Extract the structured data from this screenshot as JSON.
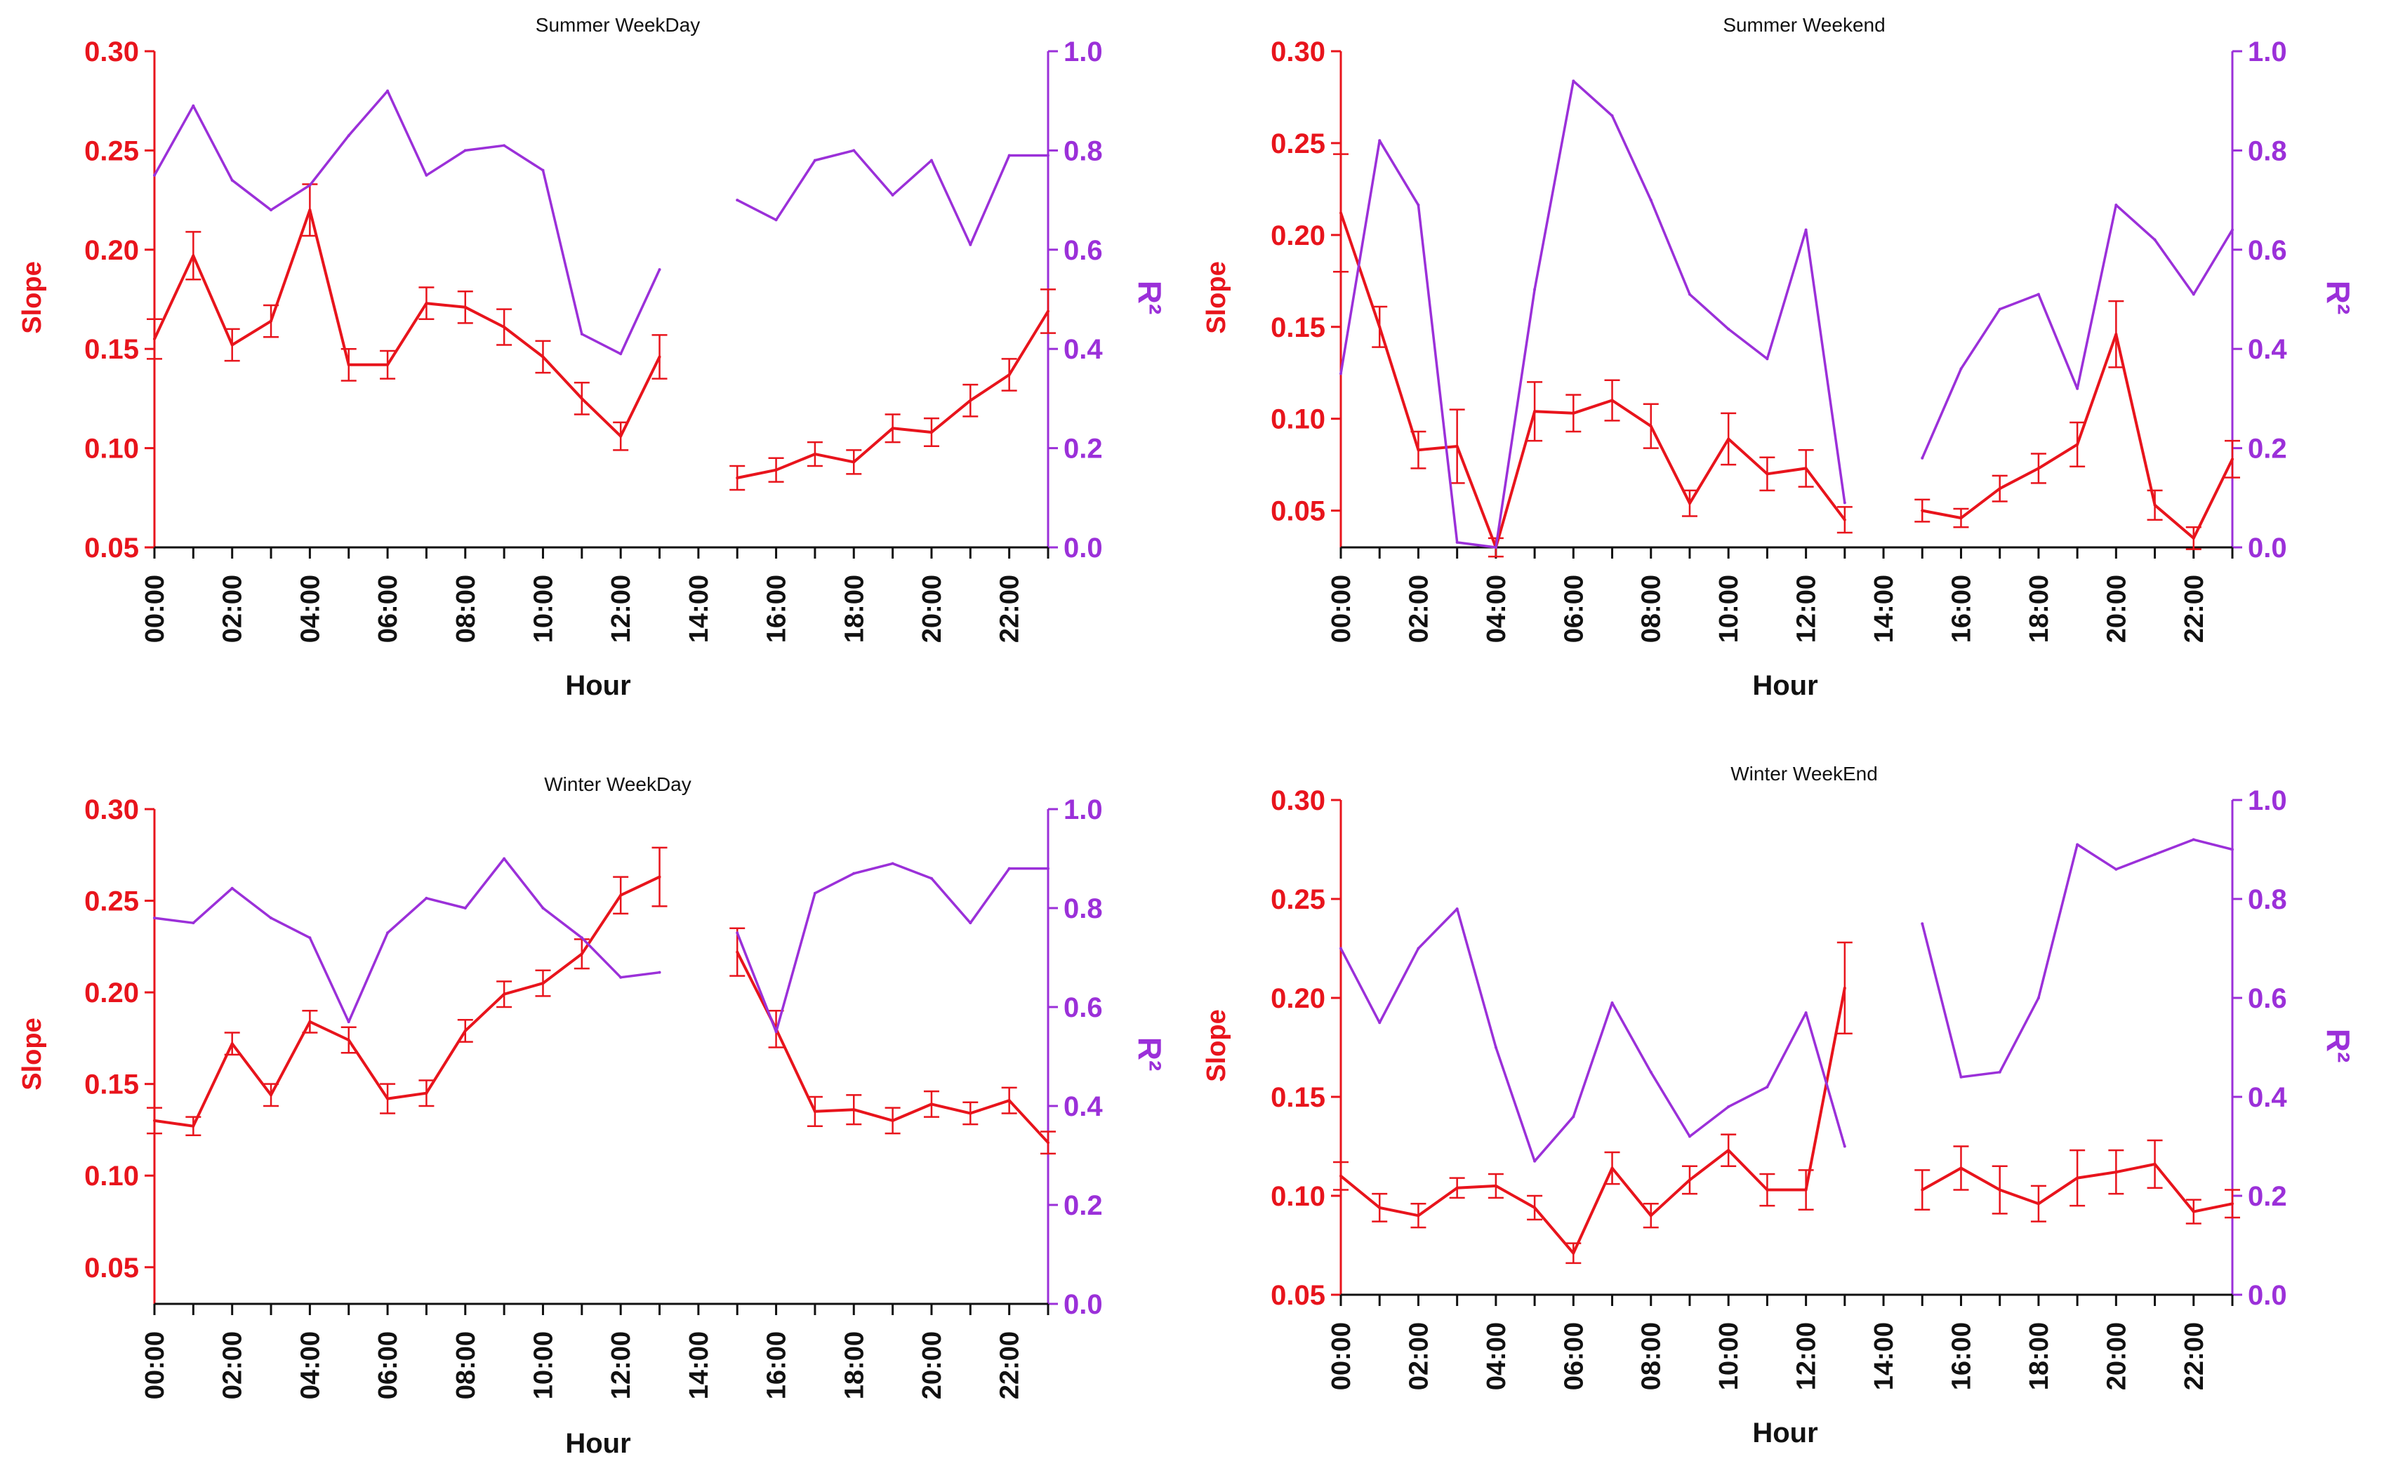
{
  "colors": {
    "slope": "#e8141c",
    "r2": "#9b30d9",
    "axis": "#111111"
  },
  "chart_data": [
    {
      "type": "line",
      "title": "Summer WeekDay",
      "xlabel": "Hour",
      "ylabel_left": "Slope",
      "ylabel_right": "R²",
      "ylim_left": [
        0.05,
        0.3
      ],
      "ylim_right": [
        0.0,
        1.0
      ],
      "yticks_left": [
        "0.05",
        "0.10",
        "0.15",
        "0.20",
        "0.25",
        "0.30"
      ],
      "yticks_right": [
        "0.0",
        "0.2",
        "0.4",
        "0.6",
        "0.8",
        "1.0"
      ],
      "x_ticks": [
        "00:00",
        "02:00",
        "04:00",
        "06:00",
        "08:00",
        "10:00",
        "12:00",
        "14:00",
        "16:00",
        "18:00",
        "20:00",
        "22:00"
      ],
      "hours": [
        0,
        1,
        2,
        3,
        4,
        5,
        6,
        7,
        8,
        9,
        10,
        11,
        12,
        13,
        14,
        15,
        16,
        17,
        18,
        19,
        20,
        21,
        22,
        23
      ],
      "series": [
        {
          "name": "Slope",
          "axis": "left",
          "values": [
            0.155,
            0.197,
            0.152,
            0.164,
            0.22,
            0.142,
            0.142,
            0.173,
            0.171,
            0.161,
            0.146,
            0.125,
            0.106,
            0.146,
            null,
            0.085,
            0.089,
            0.097,
            0.093,
            0.11,
            0.108,
            0.124,
            0.137,
            0.169
          ],
          "errors": [
            0.01,
            0.012,
            0.008,
            0.008,
            0.013,
            0.008,
            0.007,
            0.008,
            0.008,
            0.009,
            0.008,
            0.008,
            0.007,
            0.011,
            null,
            0.006,
            0.006,
            0.006,
            0.006,
            0.007,
            0.007,
            0.008,
            0.008,
            0.011
          ]
        },
        {
          "name": "R²",
          "axis": "right",
          "values": [
            0.75,
            0.89,
            0.74,
            0.68,
            0.73,
            0.83,
            0.92,
            0.75,
            0.8,
            0.81,
            0.76,
            0.43,
            0.39,
            0.56,
            null,
            0.7,
            0.66,
            0.78,
            0.8,
            0.71,
            0.78,
            0.61,
            0.79,
            0.79
          ]
        }
      ]
    },
    {
      "type": "line",
      "title": "Summer Weekend",
      "xlabel": "Hour",
      "ylabel_left": "Slope",
      "ylabel_right": "R²",
      "ylim_left": [
        0.03,
        0.3
      ],
      "ylim_right": [
        0.0,
        1.0
      ],
      "yticks_left": [
        "0.05",
        "0.10",
        "0.15",
        "0.20",
        "0.25",
        "0.30"
      ],
      "yticks_right": [
        "0.0",
        "0.2",
        "0.4",
        "0.6",
        "0.8",
        "1.0"
      ],
      "x_ticks": [
        "00:00",
        "02:00",
        "04:00",
        "06:00",
        "08:00",
        "10:00",
        "12:00",
        "14:00",
        "16:00",
        "18:00",
        "20:00",
        "22:00"
      ],
      "hours": [
        0,
        1,
        2,
        3,
        4,
        5,
        6,
        7,
        8,
        9,
        10,
        11,
        12,
        13,
        14,
        15,
        16,
        17,
        18,
        19,
        20,
        21,
        22,
        23
      ],
      "series": [
        {
          "name": "Slope",
          "axis": "left",
          "values": [
            0.212,
            0.15,
            0.083,
            0.085,
            0.03,
            0.104,
            0.103,
            0.11,
            0.096,
            0.054,
            0.089,
            0.07,
            0.073,
            0.045,
            null,
            0.05,
            0.046,
            0.062,
            0.073,
            0.086,
            0.146,
            0.053,
            0.035,
            0.078
          ],
          "errors": [
            0.032,
            0.011,
            0.01,
            0.02,
            0.005,
            0.016,
            0.01,
            0.011,
            0.012,
            0.007,
            0.014,
            0.009,
            0.01,
            0.007,
            null,
            0.006,
            0.005,
            0.007,
            0.008,
            0.012,
            0.018,
            0.008,
            0.006,
            0.01
          ]
        },
        {
          "name": "R²",
          "axis": "right",
          "values": [
            0.35,
            0.82,
            0.69,
            0.01,
            0.0,
            0.52,
            0.94,
            0.87,
            0.7,
            0.51,
            0.44,
            0.38,
            0.64,
            0.09,
            null,
            0.18,
            0.36,
            0.48,
            0.51,
            0.32,
            0.69,
            0.62,
            0.51,
            0.64
          ]
        }
      ]
    },
    {
      "type": "line",
      "title": "Winter WeekDay",
      "xlabel": "Hour",
      "ylabel_left": "Slope",
      "ylabel_right": "R²",
      "ylim_left": [
        0.03,
        0.3
      ],
      "ylim_right": [
        0.0,
        1.0
      ],
      "yticks_left": [
        "0.05",
        "0.10",
        "0.15",
        "0.20",
        "0.25",
        "0.30"
      ],
      "yticks_right": [
        "0.0",
        "0.2",
        "0.4",
        "0.6",
        "0.8",
        "1.0"
      ],
      "x_ticks": [
        "00:00",
        "02:00",
        "04:00",
        "06:00",
        "08:00",
        "10:00",
        "12:00",
        "14:00",
        "16:00",
        "18:00",
        "20:00",
        "22:00"
      ],
      "hours": [
        0,
        1,
        2,
        3,
        4,
        5,
        6,
        7,
        8,
        9,
        10,
        11,
        12,
        13,
        14,
        15,
        16,
        17,
        18,
        19,
        20,
        21,
        22,
        23
      ],
      "series": [
        {
          "name": "Slope",
          "axis": "left",
          "values": [
            0.13,
            0.127,
            0.172,
            0.144,
            0.184,
            0.174,
            0.142,
            0.145,
            0.179,
            0.199,
            0.205,
            0.221,
            0.253,
            0.263,
            null,
            0.222,
            0.18,
            0.135,
            0.136,
            0.13,
            0.139,
            0.134,
            0.141,
            0.118
          ],
          "errors": [
            0.007,
            0.005,
            0.006,
            0.006,
            0.006,
            0.007,
            0.008,
            0.007,
            0.006,
            0.007,
            0.007,
            0.008,
            0.01,
            0.016,
            null,
            0.013,
            0.01,
            0.008,
            0.008,
            0.007,
            0.007,
            0.006,
            0.007,
            0.006
          ]
        },
        {
          "name": "R²",
          "axis": "right",
          "values": [
            0.78,
            0.77,
            0.84,
            0.78,
            0.74,
            0.57,
            0.75,
            0.82,
            0.8,
            0.9,
            0.8,
            0.74,
            0.66,
            0.67,
            null,
            0.75,
            0.55,
            0.83,
            0.87,
            0.89,
            0.86,
            0.77,
            0.88,
            0.88
          ]
        }
      ]
    },
    {
      "type": "line",
      "title": "Winter WeekEnd",
      "xlabel": "Hour",
      "ylabel_left": "Slope",
      "ylabel_right": "R²",
      "ylim_left": [
        0.05,
        0.3
      ],
      "ylim_right": [
        0.0,
        1.0
      ],
      "yticks_left": [
        "0.05",
        "0.10",
        "0.15",
        "0.20",
        "0.25",
        "0.30"
      ],
      "yticks_right": [
        "0.0",
        "0.2",
        "0.4",
        "0.6",
        "0.8",
        "1.0"
      ],
      "x_ticks": [
        "00:00",
        "02:00",
        "04:00",
        "06:00",
        "08:00",
        "10:00",
        "12:00",
        "14:00",
        "16:00",
        "18:00",
        "20:00",
        "22:00"
      ],
      "hours": [
        0,
        1,
        2,
        3,
        4,
        5,
        6,
        7,
        8,
        9,
        10,
        11,
        12,
        13,
        14,
        15,
        16,
        17,
        18,
        19,
        20,
        21,
        22,
        23
      ],
      "series": [
        {
          "name": "Slope",
          "axis": "left",
          "values": [
            0.11,
            0.094,
            0.09,
            0.104,
            0.105,
            0.094,
            0.071,
            0.114,
            0.09,
            0.108,
            0.123,
            0.103,
            0.103,
            0.205,
            null,
            0.103,
            0.114,
            0.103,
            0.096,
            0.109,
            0.112,
            0.116,
            0.092,
            0.096
          ],
          "errors": [
            0.007,
            0.007,
            0.006,
            0.005,
            0.006,
            0.006,
            0.005,
            0.008,
            0.006,
            0.007,
            0.008,
            0.008,
            0.01,
            0.023,
            null,
            0.01,
            0.011,
            0.012,
            0.009,
            0.014,
            0.011,
            0.012,
            0.006,
            0.007
          ]
        },
        {
          "name": "R²",
          "axis": "right",
          "values": [
            0.7,
            0.55,
            0.7,
            0.78,
            0.5,
            0.27,
            0.36,
            0.59,
            0.45,
            0.32,
            0.38,
            0.42,
            0.57,
            0.3,
            null,
            0.75,
            0.44,
            0.45,
            0.6,
            0.91,
            0.86,
            0.89,
            0.92,
            0.9
          ]
        }
      ]
    }
  ]
}
